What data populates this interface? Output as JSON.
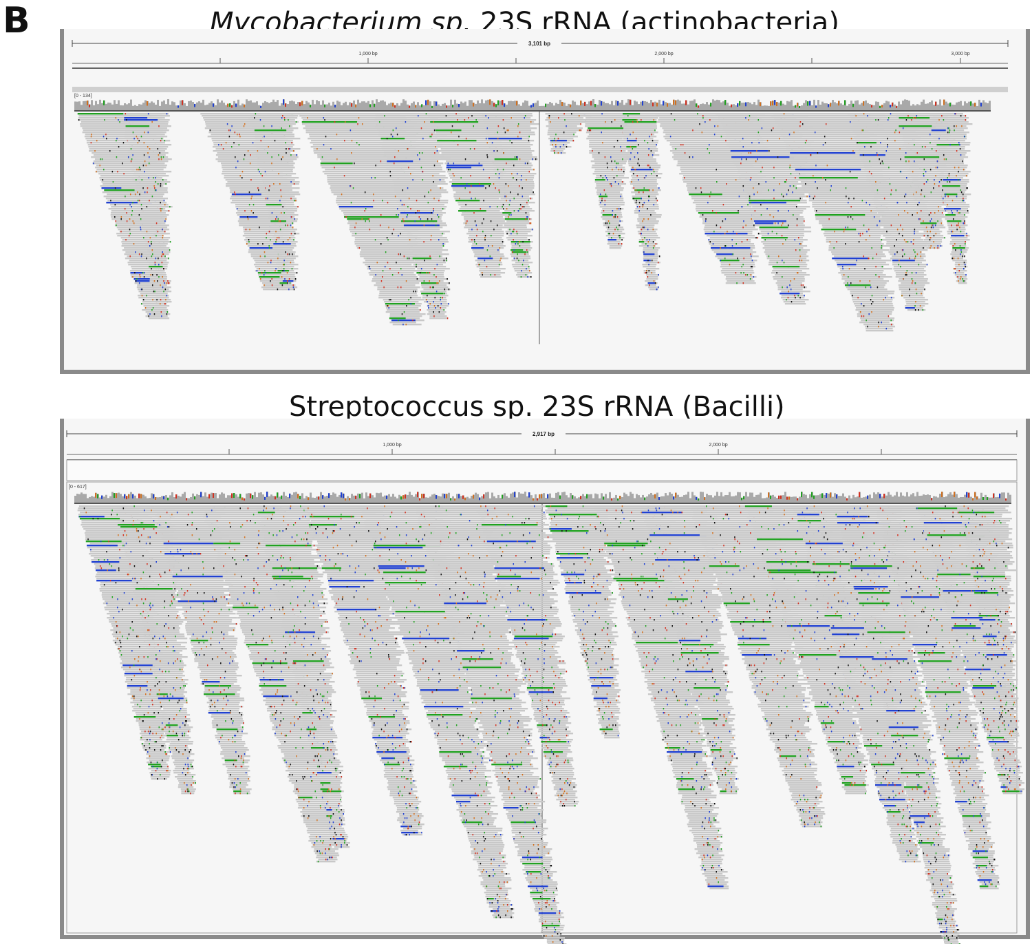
{
  "panel_label": "B",
  "panels": [
    {
      "title_italic": "Mycobacterium sp.",
      "title_rest": " 23S rRNA (actinobacteria)",
      "length_label": "3,101 bp",
      "tick_labels": [
        "1,000 bp",
        "2,000 bp",
        "3,000 bp"
      ],
      "range_label": "[0 - 134]"
    },
    {
      "title_italic": "",
      "title_rest": "Streptococcus sp. 23S rRNA (Bacilli)",
      "length_label": "2,917 bp",
      "tick_labels": [
        "1,000 bp",
        "2,000 bp"
      ],
      "range_label": "[0 - 617]"
    }
  ],
  "colors": {
    "read": "#c8c8c8",
    "coverage": "#a9a9a9",
    "mismatch_A": "#20a020",
    "mismatch_C": "#2040d0",
    "mismatch_G": "#d07020",
    "mismatch_T": "#d03020",
    "frame": "#8a8a8a"
  }
}
